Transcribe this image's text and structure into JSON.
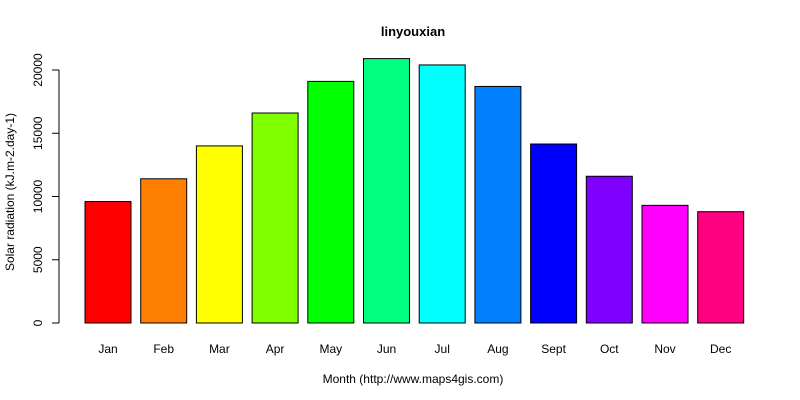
{
  "chart_data": {
    "type": "bar",
    "title": "linyouxian",
    "xlabel": "Month (http://www.maps4gis.com)",
    "ylabel": "Solar radiation (kJ.m-2.day-1)",
    "categories": [
      "Jan",
      "Feb",
      "Mar",
      "Apr",
      "May",
      "Jun",
      "Jul",
      "Aug",
      "Sept",
      "Oct",
      "Nov",
      "Dec"
    ],
    "values": [
      9600,
      11400,
      14000,
      16600,
      19100,
      20900,
      20400,
      18700,
      14150,
      11600,
      9300,
      8800
    ],
    "colors": [
      "#ff0000",
      "#ff8000",
      "#ffff00",
      "#80ff00",
      "#00ff00",
      "#00ff80",
      "#00ffff",
      "#0080ff",
      "#0000ff",
      "#8000ff",
      "#ff00ff",
      "#ff0080"
    ],
    "yticks": [
      0,
      5000,
      10000,
      15000,
      20000
    ],
    "ylim": [
      0,
      20900
    ],
    "grid": false,
    "legend": "none"
  }
}
